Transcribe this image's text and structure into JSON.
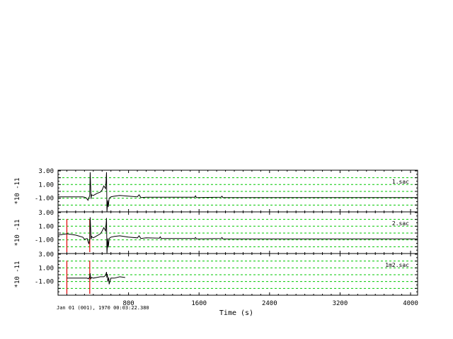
{
  "chart_data": {
    "type": "line",
    "xlabel": "Time (s)",
    "xlim": [
      0,
      4080
    ],
    "x_ticks": [
      800,
      1600,
      2400,
      3200,
      4000
    ],
    "x_tick_labels": [
      "800",
      "1600",
      "2400",
      "3200",
      "4000"
    ],
    "date_label": "Jan 01 (001), 1970 00:03:22.380",
    "grid": true,
    "grid_color": "#00c800",
    "trace_color": "#000000",
    "marker_color": "#e00000",
    "panels": [
      {
        "name": "1.sac",
        "ylabel": "*10 -11",
        "ylim": [
          -3,
          3.1
        ],
        "y_ticks": [
          3,
          1,
          -1
        ],
        "y_tick_labels": [
          "3.00",
          "1.00",
          "-1.00"
        ],
        "markers": [],
        "series": [
          {
            "x": [
              0,
              280,
              300,
              320,
              340,
              360,
              365,
              375,
              380,
              400,
              440,
              480,
              500,
              520,
              540,
              550,
              555,
              565,
              570,
              580,
              600,
              640,
              700,
              800,
              900,
              920,
              940,
              1000,
              1200,
              1550,
              1560,
              1570,
              1850,
              1860,
              1870,
              4080
            ],
            "y": [
              -0.8,
              -0.8,
              -0.85,
              -0.95,
              -1.3,
              -0.6,
              2.8,
              -1.1,
              -0.5,
              -0.6,
              -0.3,
              -0.1,
              0.2,
              0.8,
              0.4,
              2.8,
              -3.0,
              -1.3,
              -2.3,
              -1.0,
              -0.8,
              -0.7,
              -0.6,
              -0.7,
              -0.8,
              -0.5,
              -0.9,
              -0.85,
              -0.85,
              -0.85,
              -0.65,
              -0.9,
              -0.85,
              -0.7,
              -0.9,
              -0.9
            ]
          }
        ]
      },
      {
        "name": "2.sac",
        "ylabel": "*10 -11",
        "ylim": [
          -3,
          3.1
        ],
        "y_ticks": [
          3,
          1,
          -1
        ],
        "y_tick_labels": [
          "3.00",
          "1.00",
          "-1.00"
        ],
        "markers": [
          100,
          360
        ],
        "series": [
          {
            "x": [
              0,
              100,
              200,
              280,
              300,
              330,
              350,
              360,
              365,
              375,
              380,
              400,
              440,
              480,
              500,
              520,
              540,
              550,
              555,
              565,
              570,
              580,
              600,
              640,
              700,
              800,
              900,
              920,
              940,
              1000,
              1150,
              1160,
              1170,
              1550,
              1560,
              1570,
              1850,
              1860,
              1870,
              4080
            ],
            "y": [
              -0.3,
              -0.1,
              -0.3,
              -0.6,
              -0.9,
              -0.8,
              -1.6,
              -0.8,
              2.3,
              -0.9,
              -0.5,
              -0.7,
              -0.4,
              -0.1,
              0.3,
              0.8,
              0.3,
              2.2,
              -3.0,
              -0.8,
              -2.1,
              -0.8,
              -0.6,
              -0.5,
              -0.4,
              -0.6,
              -0.7,
              -0.4,
              -0.8,
              -0.7,
              -0.75,
              -0.55,
              -0.8,
              -0.8,
              -0.65,
              -0.85,
              -0.8,
              -0.65,
              -0.85,
              -0.85
            ]
          }
        ]
      },
      {
        "name": "1m2.sac",
        "ylabel": "*10 -11",
        "ylim": [
          -3,
          3.1
        ],
        "y_ticks": [
          3,
          1,
          -1
        ],
        "y_tick_labels": [
          "3.00",
          "1.00",
          "-1.00"
        ],
        "markers": [
          100,
          360
        ],
        "series": [
          {
            "x": [
              100,
              200,
              300,
              330,
              345,
              360,
              365,
              370,
              380,
              400,
              440,
              480,
              520,
              540,
              550,
              553,
              560,
              565,
              575,
              580,
              600,
              640,
              700,
              760,
              761
            ],
            "y": [
              -0.5,
              -0.5,
              -0.5,
              -0.5,
              -0.6,
              -0.3,
              0.2,
              -0.6,
              -0.4,
              -0.5,
              -0.4,
              -0.3,
              -0.3,
              -0.1,
              0.4,
              -0.4,
              0.1,
              -1.0,
              -0.4,
              -1.4,
              -0.5,
              -0.5,
              -0.3,
              -0.4,
              -0.4
            ]
          }
        ]
      }
    ]
  }
}
